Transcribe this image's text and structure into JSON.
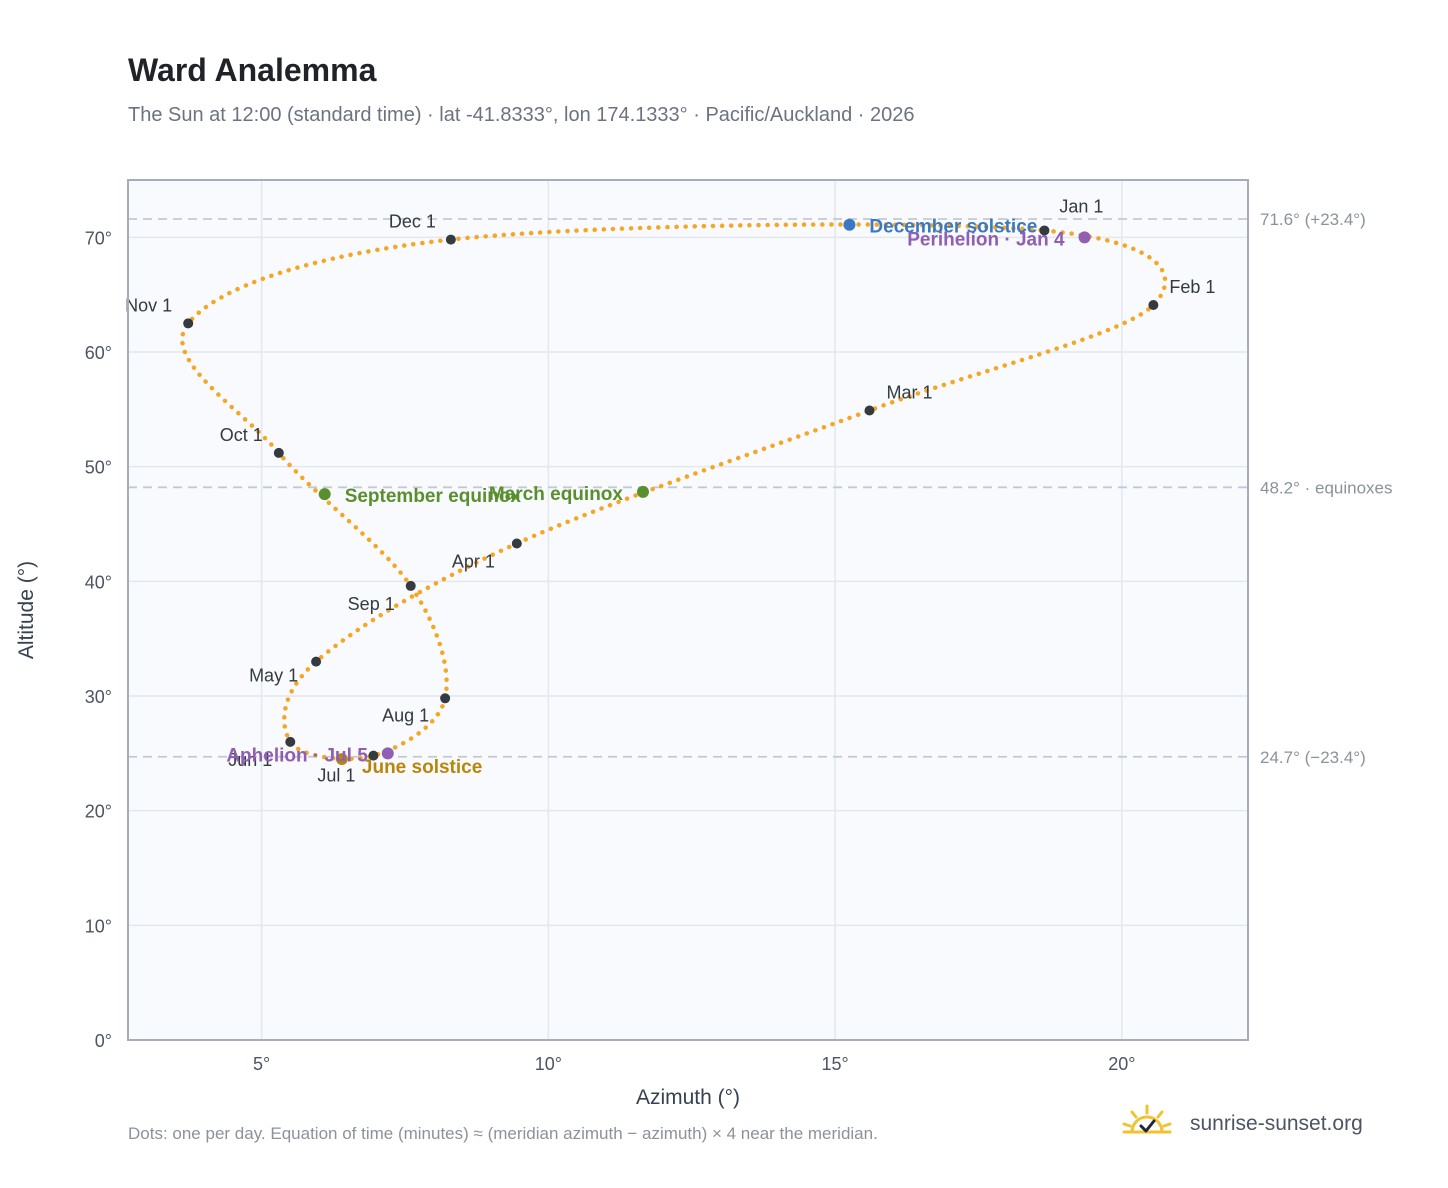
{
  "header": {
    "title": "Ward Analemma",
    "subtitle": "The Sun at 12:00 (standard time) · lat -41.8333°, lon 174.1333° · Pacific/Auckland · 2026"
  },
  "footer": {
    "note": "Dots: one per day. Equation of time (minutes) ≈ (meridian azimuth − azimuth) × 4 near the meridian.",
    "brand": "sunrise-sunset.org"
  },
  "colors": {
    "curve": "#f5a623",
    "month_marker": "#343a40",
    "solstice_dec": "#3a78c2",
    "solstice_jun": "#b8860b",
    "equinox": "#5a8f2e",
    "apsis": "#8e5fb3",
    "reference_line": "#c3c9d2",
    "plot_bg": "#f8fafd",
    "grid": "#e3e7ee",
    "frame": "#a4adbb"
  },
  "chart_data": {
    "type": "scatter",
    "xlabel": "Azimuth (°)",
    "ylabel": "Altitude (°)",
    "xlim": [
      2.67,
      22.2
    ],
    "ylim": [
      0,
      75
    ],
    "x_ticks": [
      {
        "value": 5,
        "label": "5°"
      },
      {
        "value": 10,
        "label": "10°"
      },
      {
        "value": 15,
        "label": "15°"
      },
      {
        "value": 20,
        "label": "20°"
      }
    ],
    "y_ticks": [
      {
        "value": 0,
        "label": "0°"
      },
      {
        "value": 10,
        "label": "10°"
      },
      {
        "value": 20,
        "label": "20°"
      },
      {
        "value": 30,
        "label": "30°"
      },
      {
        "value": 40,
        "label": "40°"
      },
      {
        "value": 50,
        "label": "50°"
      },
      {
        "value": 60,
        "label": "60°"
      },
      {
        "value": 70,
        "label": "70°"
      }
    ],
    "grid": true,
    "reference_lines": [
      {
        "y": 71.6,
        "label": "71.6° (+23.4°)"
      },
      {
        "y": 48.2,
        "label": "48.2° · equinoxes"
      },
      {
        "y": 24.7,
        "label": "24.7° (−23.4°)"
      }
    ],
    "month_markers": [
      {
        "label": "Jan 1",
        "x": 18.65,
        "y": 70.6
      },
      {
        "label": "Feb 1",
        "x": 20.55,
        "y": 64.1
      },
      {
        "label": "Mar 1",
        "x": 15.6,
        "y": 54.9
      },
      {
        "label": "Apr 1",
        "x": 9.45,
        "y": 43.3
      },
      {
        "label": "May 1",
        "x": 5.95,
        "y": 33.0
      },
      {
        "label": "Jun 1",
        "x": 5.5,
        "y": 26.0
      },
      {
        "label": "Jul 1",
        "x": 6.95,
        "y": 24.8
      },
      {
        "label": "Aug 1",
        "x": 8.2,
        "y": 29.8
      },
      {
        "label": "Sep 1",
        "x": 7.6,
        "y": 39.6
      },
      {
        "label": "Oct 1",
        "x": 5.3,
        "y": 51.2
      },
      {
        "label": "Nov 1",
        "x": 3.72,
        "y": 62.5
      },
      {
        "label": "Dec 1",
        "x": 8.3,
        "y": 69.8
      }
    ],
    "events": [
      {
        "label": "December solstice",
        "x": 15.25,
        "y": 71.1,
        "color_key": "solstice_dec"
      },
      {
        "label": "June solstice",
        "x": 6.4,
        "y": 24.5,
        "color_key": "solstice_jun"
      },
      {
        "label": "March equinox",
        "x": 11.65,
        "y": 47.8,
        "color_key": "equinox"
      },
      {
        "label": "September equinox",
        "x": 6.1,
        "y": 47.6,
        "color_key": "equinox"
      },
      {
        "label": "Perihelion · Jan 4",
        "x": 19.35,
        "y": 70.0,
        "color_key": "apsis"
      },
      {
        "label": "Aphelion · Jul 5",
        "x": 7.2,
        "y": 25.0,
        "color_key": "apsis"
      }
    ]
  }
}
